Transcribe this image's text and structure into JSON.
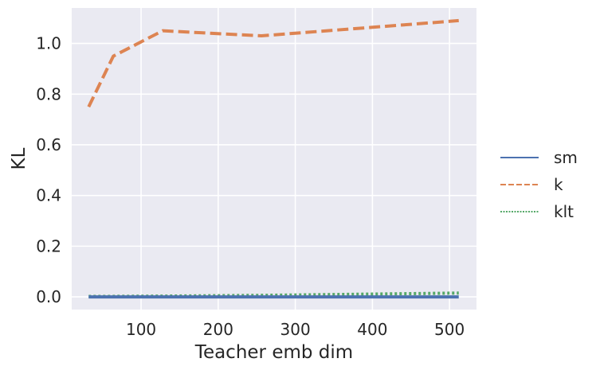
{
  "chart_data": {
    "type": "line",
    "xlabel": "Teacher emb dim",
    "ylabel": "KL",
    "xlim": [
      10,
      535
    ],
    "ylim": [
      -0.05,
      1.14
    ],
    "xticks": [
      100,
      200,
      300,
      400,
      500
    ],
    "yticks": [
      0.0,
      0.2,
      0.4,
      0.6,
      0.8,
      1.0
    ],
    "grid": true,
    "legend": "right-outside",
    "x": [
      32,
      64,
      128,
      256,
      512
    ],
    "series": [
      {
        "name": "sm",
        "values": [
          0.0,
          0.0,
          0.0,
          0.0,
          0.0
        ],
        "color": "#4c72b0",
        "dash": "solid"
      },
      {
        "name": "k",
        "values": [
          0.75,
          0.95,
          1.05,
          1.03,
          1.09
        ],
        "color": "#dd8452",
        "dash": "dashed"
      },
      {
        "name": "klt",
        "values": [
          0.002,
          0.002,
          0.003,
          0.006,
          0.015
        ],
        "color": "#55a868",
        "dash": "dotted"
      }
    ],
    "background": "#eaeaf2"
  }
}
